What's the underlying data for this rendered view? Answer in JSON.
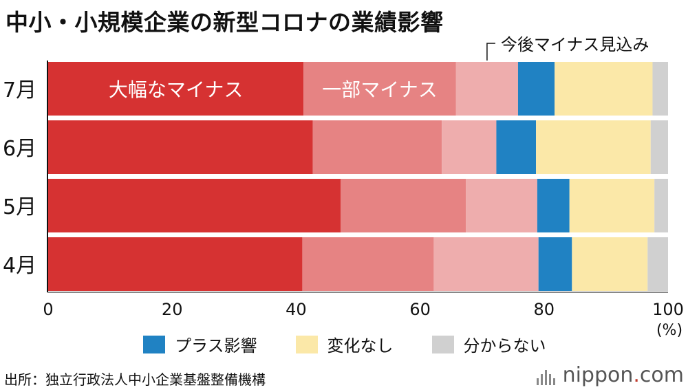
{
  "title": "中小・小規模企業の新型コロナの業績影響",
  "chart_data": {
    "type": "bar",
    "orientation": "horizontal",
    "stacked": true,
    "categories": [
      "7月",
      "6月",
      "5月",
      "4月"
    ],
    "series": [
      {
        "name": "大幅なマイナス",
        "color": "#d63232",
        "values": [
          41.2,
          42.7,
          47.2,
          41.0
        ]
      },
      {
        "name": "一部マイナス",
        "color": "#e68383",
        "values": [
          24.6,
          20.8,
          20.2,
          21.2
        ]
      },
      {
        "name": "今後マイナス見込み",
        "color": "#eeadad",
        "values": [
          10.0,
          8.8,
          11.5,
          16.9
        ]
      },
      {
        "name": "プラス影響",
        "color": "#2082c3",
        "values": [
          5.9,
          6.4,
          5.2,
          5.4
        ]
      },
      {
        "name": "変化なし",
        "color": "#fbe8a8",
        "values": [
          15.8,
          18.5,
          13.7,
          12.2
        ]
      },
      {
        "name": "分からない",
        "color": "#d0d0d0",
        "values": [
          2.5,
          2.8,
          2.2,
          3.3
        ]
      }
    ],
    "xlim": [
      0,
      100
    ],
    "xticks": [
      0,
      20,
      40,
      60,
      80,
      100
    ],
    "unit": "(%)",
    "inbar_labels": [
      "大幅なマイナス",
      "一部マイナス"
    ],
    "callout": "今後マイナス見込み",
    "legend": [
      "プラス影響",
      "変化なし",
      "分からない"
    ]
  },
  "source": "出所：独立行政法人中小企業基盤整備機構",
  "credit": {
    "name": "nippon",
    "dot": ".",
    "tld": "com"
  }
}
